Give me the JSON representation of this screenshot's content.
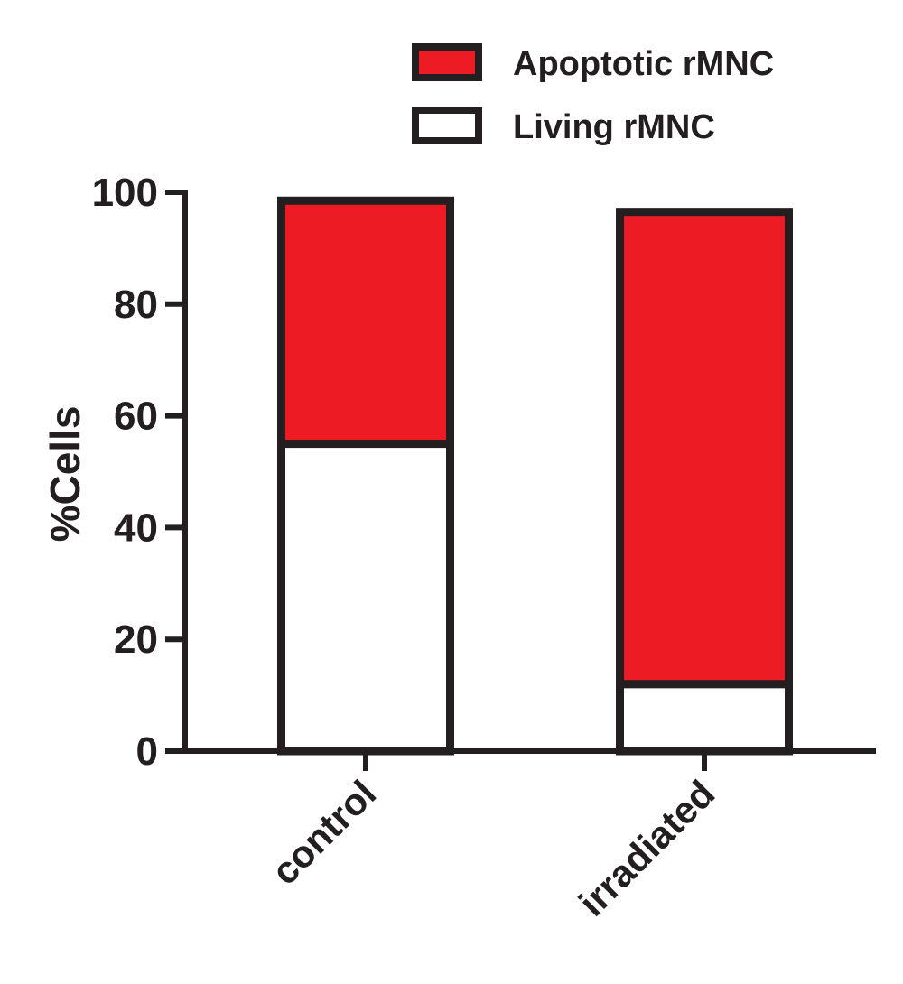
{
  "chart_data": {
    "type": "bar",
    "stacked": true,
    "categories": [
      "control",
      "irradiated"
    ],
    "series": [
      {
        "name": "Living rMNC",
        "values": [
          55,
          12
        ],
        "color": "#ffffff"
      },
      {
        "name": "Apoptotic rMNC",
        "values": [
          43.5,
          84.5
        ],
        "color": "#ed1c24"
      }
    ],
    "legend_order": [
      "Apoptotic rMNC",
      "Living rMNC"
    ],
    "legend_position": "top-right",
    "ylabel": "%Cells",
    "xlabel": "",
    "title": "",
    "ylim": [
      0,
      100
    ],
    "yticks": [
      0,
      20,
      40,
      60,
      80,
      100
    ],
    "grid": false
  }
}
